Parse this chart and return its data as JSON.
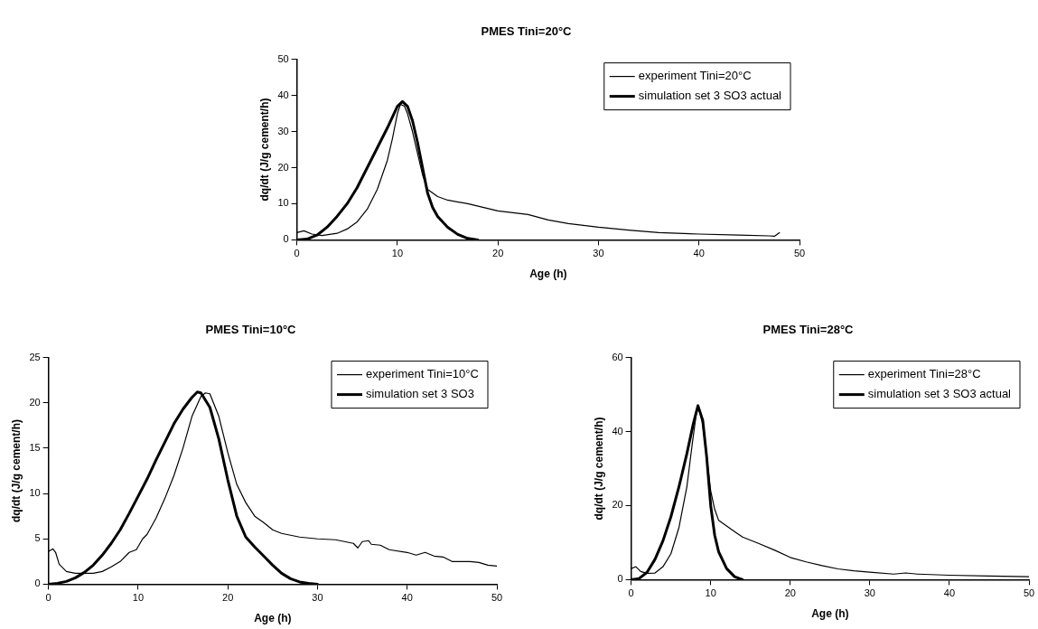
{
  "chart_data": [
    {
      "type": "line",
      "title": "PMES Tini=20°C",
      "xlabel": "Age (h)",
      "ylabel": "dq/dt (J/g cement/h)",
      "xlim": [
        0,
        50
      ],
      "xticks": [
        0,
        10,
        20,
        30,
        40,
        50
      ],
      "ylim": [
        0,
        50
      ],
      "yticks": [
        0,
        10,
        20,
        30,
        40,
        50
      ],
      "grid": false,
      "legend": "top right",
      "marker": "none",
      "line_style": "solid",
      "series": [
        {
          "name": "experiment Tini=20°C",
          "color": "#000000",
          "x": [
            0,
            0.7,
            1.5,
            2.5,
            4,
            5,
            6,
            7,
            8,
            9,
            9.5,
            10,
            10.3,
            10.7,
            11,
            11.5,
            12,
            12.5,
            13,
            14,
            15,
            17,
            20,
            23,
            25,
            27,
            30,
            33,
            36,
            40,
            44,
            47,
            47.5,
            48
          ],
          "values": [
            2,
            2.5,
            1.6,
            1.2,
            1.8,
            3,
            5,
            8.5,
            14,
            22,
            28,
            35,
            37.5,
            37,
            35,
            30,
            24,
            18,
            14,
            12,
            11,
            10,
            8,
            7,
            5.5,
            4.5,
            3.5,
            2.7,
            2,
            1.6,
            1.3,
            1.1,
            1,
            2
          ]
        },
        {
          "name": "simulation set 3 SO3 actual",
          "color": "#000000",
          "x": [
            0,
            1,
            2,
            3,
            4,
            5,
            6,
            7,
            8,
            9,
            10,
            10.5,
            11,
            11.5,
            12,
            12.5,
            13,
            13.5,
            14,
            15,
            16,
            17,
            18
          ],
          "values": [
            0,
            0.2,
            1.3,
            3.5,
            6.5,
            10,
            14.5,
            20,
            25.5,
            31,
            37,
            38.3,
            37,
            33,
            27,
            20,
            13,
            9,
            6.5,
            3.5,
            1.5,
            0.4,
            0
          ]
        }
      ]
    },
    {
      "type": "line",
      "title": "PMES Tini=10°C",
      "xlabel": "Age (h)",
      "ylabel": "dq/dt (J/g cement/h)",
      "xlim": [
        0,
        50
      ],
      "xticks": [
        0,
        10,
        20,
        30,
        40,
        50
      ],
      "ylim": [
        0,
        25
      ],
      "yticks": [
        0,
        5,
        10,
        15,
        20,
        25
      ],
      "grid": false,
      "legend": "top right",
      "marker": "none",
      "line_style": "solid",
      "series": [
        {
          "name": "experiment Tini=10°C",
          "color": "#000000",
          "x": [
            0,
            0.5,
            0.8,
            1.2,
            2,
            3,
            4,
            5,
            6,
            7,
            8,
            9,
            9.8,
            10.5,
            11,
            12,
            13,
            14,
            15,
            16,
            17,
            17.5,
            18,
            19,
            20,
            21,
            22,
            23,
            24,
            25,
            26,
            27,
            28,
            30,
            32,
            33,
            34,
            34.5,
            35,
            35.7,
            36,
            37,
            38,
            40,
            41,
            42,
            43,
            44,
            45,
            47,
            48,
            49,
            50
          ],
          "values": [
            3.6,
            3.9,
            3.5,
            2.2,
            1.4,
            1.2,
            1.2,
            1.2,
            1.4,
            1.9,
            2.5,
            3.5,
            3.8,
            5,
            5.5,
            7.3,
            9.5,
            12,
            15,
            18.5,
            20.7,
            21.1,
            21,
            18.5,
            14.5,
            11,
            9,
            7.5,
            6.8,
            6,
            5.6,
            5.4,
            5.2,
            5,
            4.9,
            4.7,
            4.5,
            4,
            4.7,
            4.8,
            4.4,
            4.3,
            3.8,
            3.5,
            3.2,
            3.5,
            3.1,
            3,
            2.5,
            2.5,
            2.4,
            2.1,
            2
          ]
        },
        {
          "name": "simulation set 3 SO3",
          "color": "#000000",
          "x": [
            0,
            1,
            2,
            3,
            4,
            5,
            6,
            7,
            8,
            9,
            10,
            11,
            12,
            13,
            14,
            15,
            16,
            16.6,
            17,
            18,
            19,
            20,
            21,
            22,
            23,
            24,
            25,
            26,
            27,
            28,
            29,
            30
          ],
          "values": [
            0,
            0.1,
            0.3,
            0.7,
            1.3,
            2.1,
            3.2,
            4.5,
            6,
            7.8,
            9.7,
            11.6,
            13.7,
            15.7,
            17.7,
            19.3,
            20.6,
            21.2,
            21.1,
            19.5,
            16,
            11.5,
            7.5,
            5.2,
            4.1,
            3.1,
            2.1,
            1.2,
            0.6,
            0.25,
            0.1,
            0
          ]
        }
      ]
    },
    {
      "type": "line",
      "title": "PMES Tini=28°C",
      "xlabel": "Age (h)",
      "ylabel": "dq/dt (J/g cement/h)",
      "xlim": [
        0,
        50
      ],
      "xticks": [
        0,
        10,
        20,
        30,
        40,
        50
      ],
      "ylim": [
        0,
        60
      ],
      "yticks": [
        0,
        20,
        40,
        60
      ],
      "grid": false,
      "legend": "top right",
      "marker": "none",
      "line_style": "solid",
      "series": [
        {
          "name": "experiment Tini=28°C",
          "color": "#000000",
          "x": [
            0,
            0.6,
            1.2,
            2,
            3,
            4,
            5,
            6,
            7,
            7.7,
            8.2,
            8.5,
            9,
            9.5,
            10,
            10.5,
            11,
            12,
            13,
            14,
            16,
            18,
            20,
            22,
            24,
            26,
            28,
            30,
            33,
            34.5,
            36,
            40,
            45,
            50
          ],
          "values": [
            3,
            3.5,
            2.2,
            1.7,
            1.8,
            3.5,
            7,
            14,
            25,
            37,
            45,
            46.5,
            42,
            33,
            24,
            19,
            16,
            14.5,
            13,
            11.5,
            9.8,
            8,
            6,
            4.8,
            3.8,
            2.9,
            2.4,
            2,
            1.5,
            1.8,
            1.5,
            1.2,
            1,
            0.8
          ]
        },
        {
          "name": "simulation set 3 SO3 actual",
          "color": "#000000",
          "x": [
            0,
            1,
            2,
            3,
            4,
            5,
            6,
            7,
            7.8,
            8.4,
            9,
            9.5,
            10,
            10.5,
            11,
            12,
            13,
            14
          ],
          "values": [
            0,
            0.3,
            2,
            5.5,
            10.5,
            17,
            25,
            34,
            42,
            47,
            43,
            33,
            20,
            12,
            7.5,
            3,
            0.8,
            0
          ]
        }
      ]
    }
  ]
}
